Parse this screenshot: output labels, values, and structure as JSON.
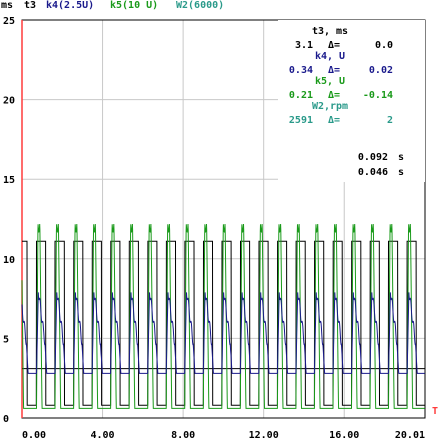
{
  "chart_data": {
    "type": "line",
    "header": {
      "unit": "ms",
      "items": [
        {
          "text": "t3",
          "color": "#000000"
        },
        {
          "text": "k4(2.5U)",
          "color": "#1a1a8c"
        },
        {
          "text": "k5(10 U)",
          "color": "#1a9a1a"
        },
        {
          "text": "W2(6000)",
          "color": "#2a9a8a"
        }
      ]
    },
    "yaxis": {
      "ticks": [
        "0",
        "5",
        "10",
        "15",
        "20",
        "25"
      ],
      "ylim": [
        0,
        25
      ]
    },
    "xaxis": {
      "ticks": [
        "0.00",
        "4.00",
        "8.00",
        "12.00",
        "16.00",
        "20.01"
      ],
      "xlim": [
        0,
        20.01
      ],
      "end_label": "T"
    },
    "readout": {
      "rows": [
        {
          "label": "t3, ms",
          "value": "3.1",
          "delta": "0.0",
          "color": "#000000"
        },
        {
          "label": "k4,  U",
          "value": "0.34",
          "delta": "0.02",
          "color": "#1a1a8c"
        },
        {
          "label": "k5,  U",
          "value": "0.21",
          "delta": "-0.14",
          "color": "#1a9a1a"
        },
        {
          "label": "W2,rpm",
          "value": "2591",
          "delta": "2",
          "color": "#2a9a8a"
        }
      ],
      "delta_symbol": "Δ=",
      "times": [
        {
          "value": "0.092",
          "unit": "s"
        },
        {
          "value": "0.046",
          "unit": "s"
        }
      ]
    },
    "series": [
      {
        "color": "#000000",
        "period": 0.92,
        "kind": "square",
        "low": 0.8,
        "high": 11.1,
        "duty": 0.5,
        "baseline": 3.1
      },
      {
        "color": "#1a9a1a",
        "period": 0.92,
        "kind": "green",
        "low": 0.6,
        "high": 12.3
      },
      {
        "color": "#1a1a8c",
        "period": 0.92,
        "kind": "blue",
        "low": 2.8,
        "high": 8.0
      }
    ],
    "colors": {
      "grid": "#c8c8c8",
      "axis": "#ff3b3b",
      "border": "#000000"
    }
  }
}
